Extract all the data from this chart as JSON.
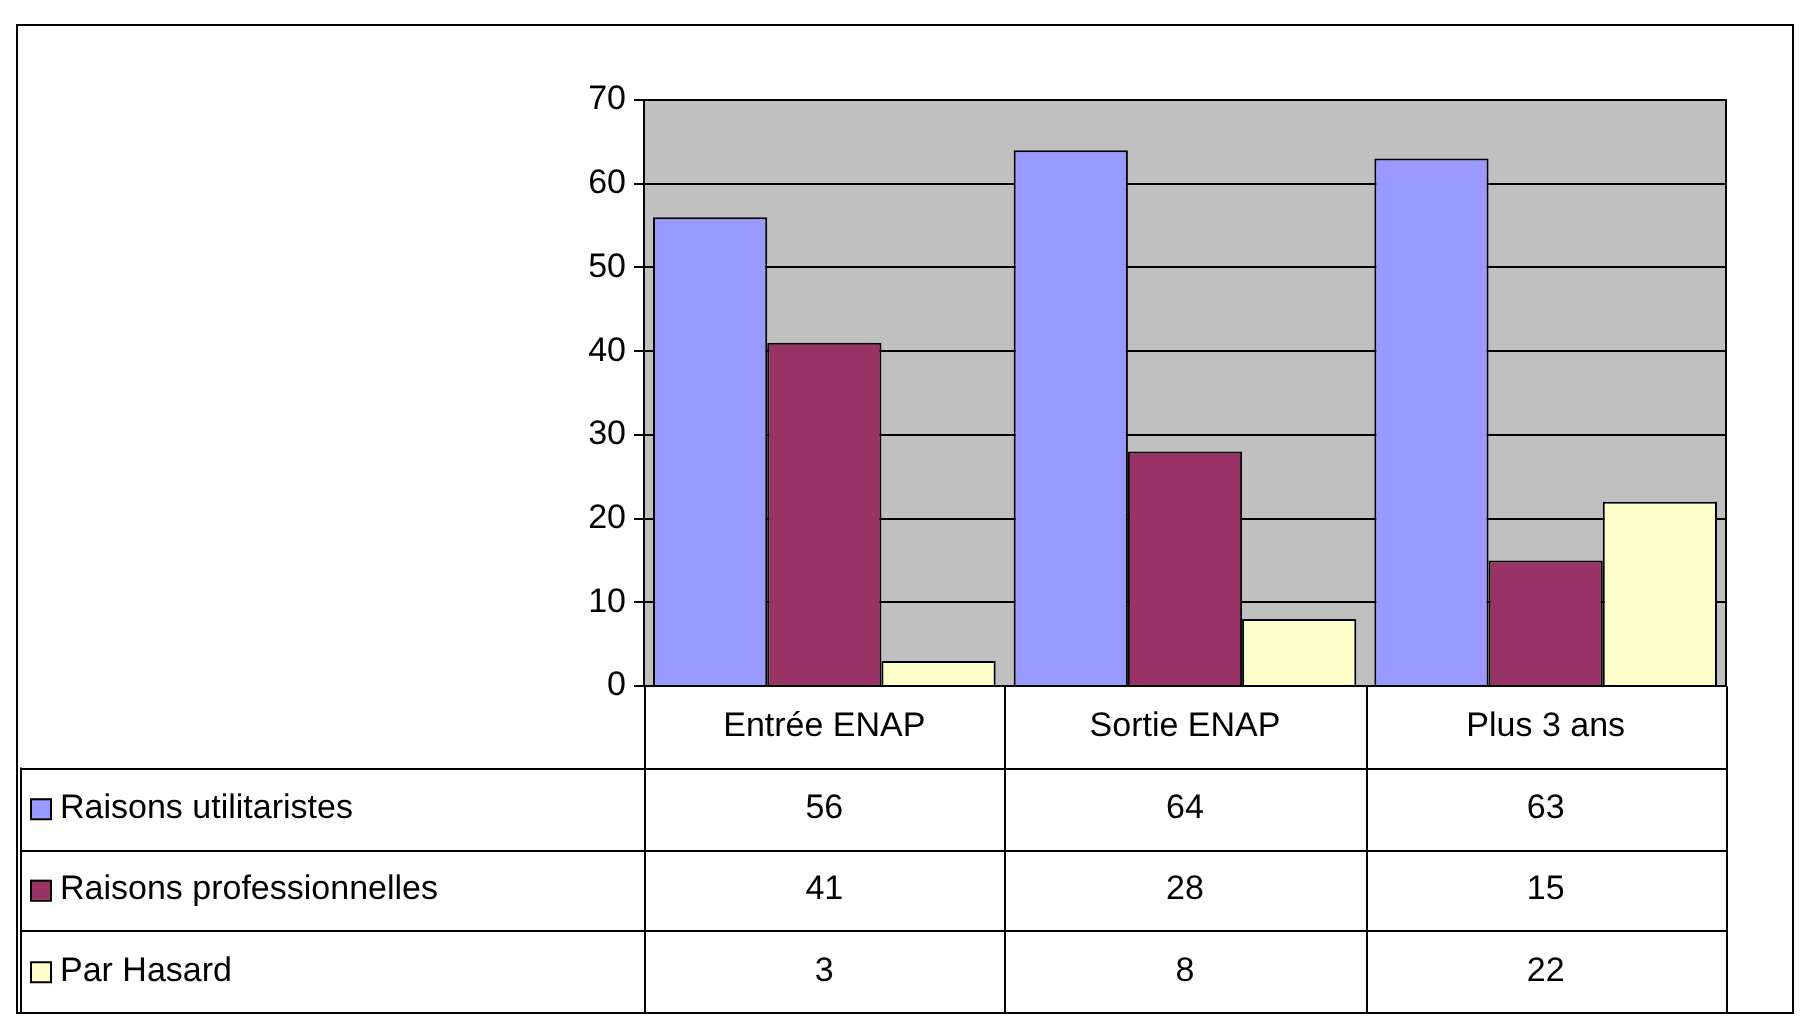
{
  "chart_data": {
    "type": "bar",
    "categories": [
      "Entrée ENAP",
      "Sortie ENAP",
      "Plus 3 ans"
    ],
    "series": [
      {
        "name": "Raisons utilitaristes",
        "color": "#9999ff",
        "values": [
          56,
          64,
          63
        ]
      },
      {
        "name": "Raisons professionnelles",
        "color": "#993366",
        "values": [
          41,
          28,
          15
        ]
      },
      {
        "name": "Par Hasard",
        "color": "#ffffcc",
        "values": [
          3,
          8,
          22
        ]
      }
    ],
    "ylim": [
      0,
      70
    ],
    "yticks": [
      0,
      10,
      20,
      30,
      40,
      50,
      60,
      70
    ],
    "grid": "y",
    "legend": "bottom",
    "data_labels": true
  }
}
